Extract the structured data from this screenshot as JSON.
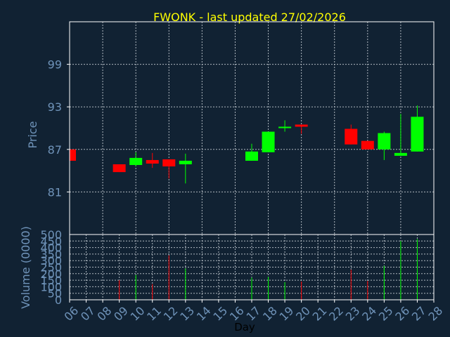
{
  "chart_data": [
    {
      "type": "candlestick",
      "title": "FWONK - last updated 27/02/2026",
      "ylabel": "Price",
      "ylim": [
        75,
        105
      ],
      "yticks": [
        81,
        87,
        93,
        99
      ],
      "grid": true,
      "x": [
        "06",
        "07",
        "08",
        "09",
        "10",
        "11",
        "12",
        "13",
        "14",
        "15",
        "16",
        "17",
        "18",
        "19",
        "20",
        "21",
        "22",
        "23",
        "24",
        "25",
        "26",
        "27",
        "28"
      ],
      "candles": [
        {
          "day": "06",
          "open": 87.0,
          "high": 87.0,
          "low": 85.4,
          "close": 85.4
        },
        {
          "day": "09",
          "open": 84.9,
          "high": 84.9,
          "low": 83.8,
          "close": 83.8
        },
        {
          "day": "10",
          "open": 84.8,
          "high": 86.6,
          "low": 84.6,
          "close": 85.8
        },
        {
          "day": "11",
          "open": 85.5,
          "high": 86.5,
          "low": 84.4,
          "close": 85.0
        },
        {
          "day": "12",
          "open": 85.6,
          "high": 85.6,
          "low": 82.9,
          "close": 84.6
        },
        {
          "day": "13",
          "open": 84.9,
          "high": 86.4,
          "low": 82.2,
          "close": 85.4
        },
        {
          "day": "17",
          "open": 85.4,
          "high": 87.8,
          "low": 85.4,
          "close": 86.7
        },
        {
          "day": "18",
          "open": 86.6,
          "high": 89.5,
          "low": 86.6,
          "close": 89.5
        },
        {
          "day": "19",
          "open": 90.0,
          "high": 91.1,
          "low": 89.5,
          "close": 90.2
        },
        {
          "day": "20",
          "open": 90.5,
          "high": 90.5,
          "low": 89.2,
          "close": 90.2
        },
        {
          "day": "23",
          "open": 89.9,
          "high": 90.5,
          "low": 87.7,
          "close": 87.7
        },
        {
          "day": "24",
          "open": 88.2,
          "high": 88.2,
          "low": 87.0,
          "close": 87.0
        },
        {
          "day": "25",
          "open": 87.0,
          "high": 89.5,
          "low": 85.5,
          "close": 89.3
        },
        {
          "day": "26",
          "open": 86.1,
          "high": 92.0,
          "low": 86.1,
          "close": 86.5
        },
        {
          "day": "27",
          "open": 86.7,
          "high": 93.2,
          "low": 86.7,
          "close": 91.6
        }
      ],
      "colors": {
        "up": "#00ff00",
        "down": "#ff0000"
      }
    },
    {
      "type": "bar",
      "xlabel": "Day",
      "ylabel": "Volume (0000)",
      "ylim": [
        0,
        500
      ],
      "yticks": [
        0,
        50,
        100,
        150,
        200,
        250,
        300,
        350,
        400,
        450,
        500
      ],
      "categories": [
        "06",
        "09",
        "10",
        "11",
        "12",
        "13",
        "17",
        "18",
        "19",
        "20",
        "23",
        "24",
        "25",
        "26",
        "27"
      ],
      "values": [
        0,
        150,
        190,
        120,
        340,
        240,
        170,
        175,
        135,
        140,
        230,
        145,
        260,
        450,
        465
      ],
      "directions": [
        "down",
        "down",
        "up",
        "down",
        "down",
        "up",
        "up",
        "up",
        "up",
        "down",
        "down",
        "down",
        "up",
        "up",
        "up"
      ]
    }
  ],
  "style": {
    "background": "#112233",
    "axis_color": "#ffffff",
    "grid_color": "#b0b8c0",
    "title_color": "#ffff00",
    "label_color": "#6f93b9",
    "xlabel_color": "#000000"
  }
}
